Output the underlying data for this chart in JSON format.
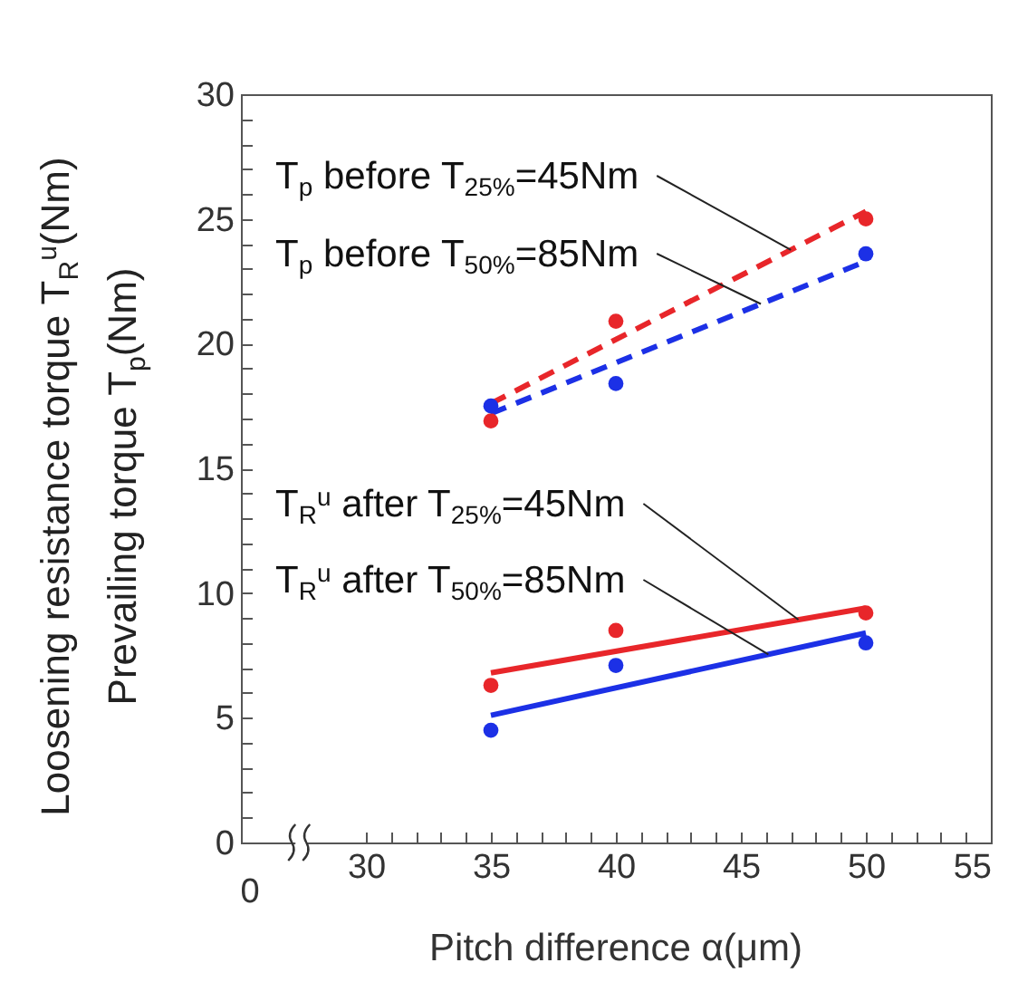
{
  "chart_data": {
    "type": "scatter",
    "xlabel": "Pitch difference α(μm)",
    "ylabel": "Loosening resistance torque T$_{R}$$^{u}$(Nm)\nPrevailing torque T$_{p}$(Nm)",
    "annotations": [
      "0"
    ],
    "xlim": [
      25,
      55
    ],
    "xticks": [
      30,
      {
        "value": 31,
        "label": null
      },
      {
        "value": 32,
        "label": null
      },
      {
        "value": 33,
        "label": null
      },
      {
        "value": 34,
        "label": null
      },
      35,
      {
        "value": 36,
        "label": null
      },
      {
        "value": 37,
        "label": null
      },
      {
        "value": 38,
        "label": null
      },
      {
        "value": 39,
        "label": null
      },
      40,
      {
        "value": 41,
        "label": null
      },
      {
        "value": 42,
        "label": null
      },
      {
        "value": 43,
        "label": null
      },
      {
        "value": 44,
        "label": null
      },
      45,
      {
        "value": 46,
        "label": null
      },
      {
        "value": 47,
        "label": null
      },
      {
        "value": 48,
        "label": null
      },
      {
        "value": 49,
        "label": null
      },
      50,
      {
        "value": 51,
        "label": null
      },
      {
        "value": 52,
        "label": null
      },
      {
        "value": 53,
        "label": null
      },
      {
        "value": 54,
        "label": null
      },
      55
    ],
    "ylim": [
      0,
      30
    ],
    "yticks": [
      0,
      {
        "value": 1,
        "label": null
      },
      {
        "value": 2,
        "label": null
      },
      {
        "value": 3,
        "label": null
      },
      {
        "value": 4,
        "label": null
      },
      5,
      {
        "value": 6,
        "label": null
      },
      {
        "value": 7,
        "label": null
      },
      {
        "value": 8,
        "label": null
      },
      {
        "value": 9,
        "label": null
      },
      10,
      {
        "value": 11,
        "label": null
      },
      {
        "value": 12,
        "label": null
      },
      {
        "value": 13,
        "label": null
      },
      {
        "value": 14,
        "label": null
      },
      15,
      {
        "value": 16,
        "label": null
      },
      {
        "value": 17,
        "label": null
      },
      {
        "value": 18,
        "label": null
      },
      {
        "value": 19,
        "label": null
      },
      20,
      {
        "value": 21,
        "label": null
      },
      {
        "value": 22,
        "label": null
      },
      {
        "value": 23,
        "label": null
      },
      {
        "value": 24,
        "label": null
      },
      25,
      {
        "value": 26,
        "label": null
      },
      {
        "value": 27,
        "label": null
      },
      {
        "value": 28,
        "label": null
      },
      {
        "value": 29,
        "label": null
      },
      30
    ],
    "series": [
      {
        "type": "line",
        "name": "T$_{p}$ before T$_{25%}$=45Nm",
        "color": "#e8262a",
        "line_style": "dashed",
        "x": [
          35,
          50
        ],
        "values": [
          17.6,
          25.3
        ]
      },
      {
        "type": "line",
        "name": "T$_{p}$ before T$_{50%}$=85Nm",
        "color": "#1c30e6",
        "line_style": "dashed",
        "x": [
          35,
          50
        ],
        "values": [
          17.2,
          23.3
        ]
      },
      {
        "type": "line",
        "name": "T$_{R}$$^{u}$ after T$_{25%}$=45Nm",
        "color": "#e8262a",
        "line_style": "solid",
        "x": [
          35,
          50
        ],
        "values": [
          6.8,
          9.4
        ]
      },
      {
        "type": "line",
        "name": "T$_{R}$$^{u}$ after T$_{50%}$=85Nm",
        "color": "#1c30e6",
        "line_style": "solid",
        "x": [
          35,
          50
        ],
        "values": [
          5.1,
          8.4
        ]
      },
      {
        "color": "#e8262a",
        "marker": "circle",
        "x": [
          35,
          40,
          50
        ],
        "values": [
          16.9,
          20.9,
          25.0
        ]
      },
      {
        "color": "#1c30e6",
        "marker": "circle",
        "x": [
          35,
          40,
          50
        ],
        "values": [
          17.5,
          18.4,
          23.6
        ]
      },
      {
        "color": "#e8262a",
        "marker": "circle",
        "x": [
          35,
          40,
          50
        ],
        "values": [
          6.3,
          8.5,
          9.2
        ]
      },
      {
        "color": "#1c30e6",
        "marker": "circle",
        "x": [
          35,
          40,
          50
        ],
        "values": [
          4.5,
          7.1,
          8.0
        ]
      }
    ]
  }
}
